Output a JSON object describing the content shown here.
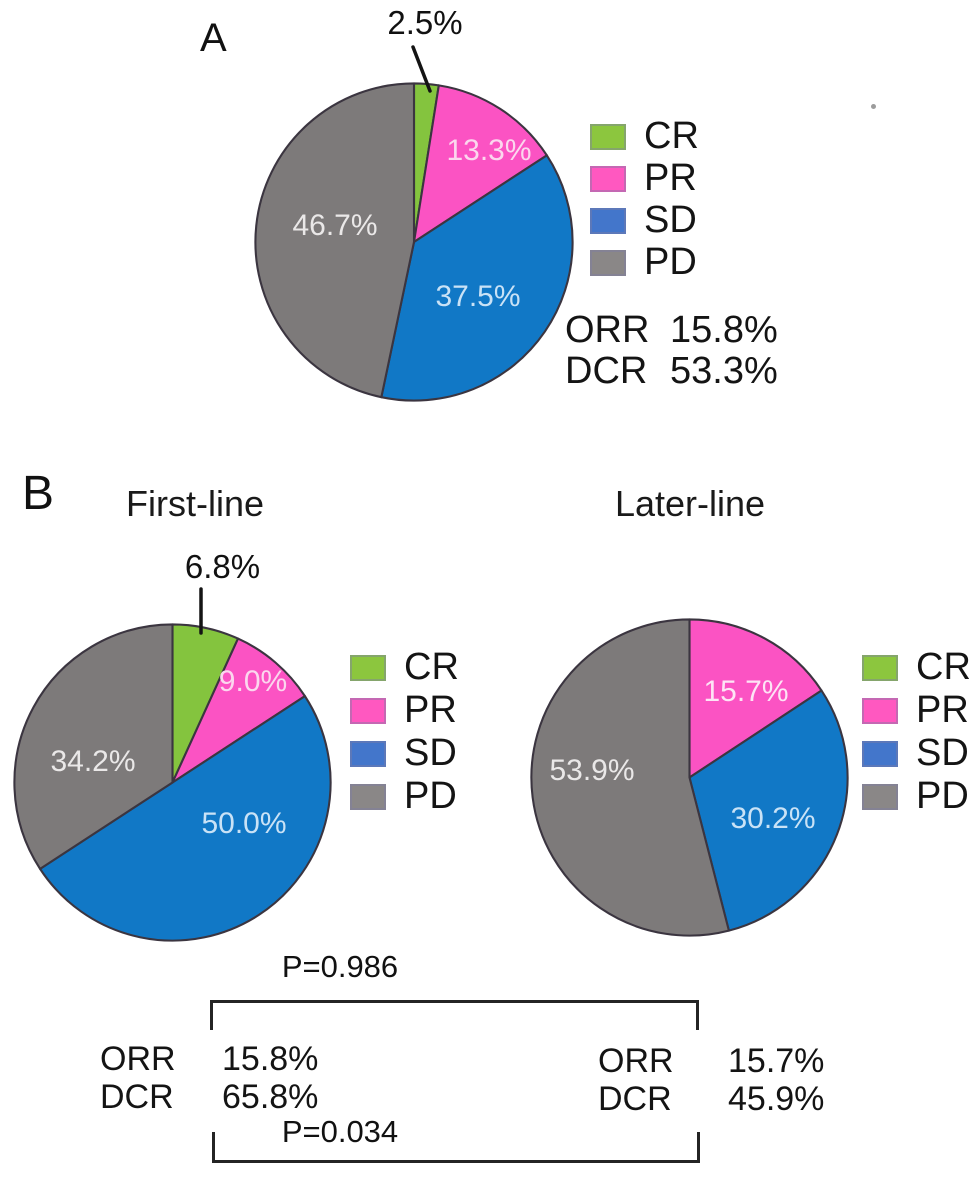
{
  "panels": {
    "A": {
      "label": "A"
    },
    "B": {
      "label": "B"
    }
  },
  "chart_data": [
    {
      "type": "pie",
      "panel": "A",
      "title": "",
      "categories": [
        "CR",
        "PR",
        "SD",
        "PD"
      ],
      "values": [
        2.5,
        13.3,
        37.5,
        46.7
      ],
      "labels": [
        "2.5%",
        "13.3%",
        "37.5%",
        "46.7%"
      ],
      "colors": [
        "#84c43e",
        "#fb53c3",
        "#1178c6",
        "#7d7a7a"
      ],
      "legend_colors": [
        "#8cc63e",
        "#ff58c0",
        "#4376cb",
        "#8a8787"
      ],
      "label_colors": [
        "#111111",
        "#fbd7ee",
        "#c9e2f6",
        "#eae8e8"
      ],
      "legend": [
        "CR",
        "PR",
        "SD",
        "PD"
      ],
      "legend_position": "right",
      "start_angle_deg": 0,
      "direction": "clockwise",
      "stats": [
        {
          "label": "ORR",
          "value": "15.8%"
        },
        {
          "label": "DCR",
          "value": "53.3%"
        }
      ]
    },
    {
      "type": "pie",
      "panel": "B",
      "title": "First-line",
      "categories": [
        "CR",
        "PR",
        "SD",
        "PD"
      ],
      "values": [
        6.8,
        9.0,
        50.0,
        34.2
      ],
      "labels": [
        "6.8%",
        "9.0%",
        "50.0%",
        "34.2%"
      ],
      "colors": [
        "#84c43e",
        "#fb53c3",
        "#1178c6",
        "#7d7a7a"
      ],
      "legend_colors": [
        "#8cc63e",
        "#ff58c0",
        "#4376cb",
        "#8a8787"
      ],
      "label_colors": [
        "#111111",
        "#fbd7ee",
        "#c9e2f6",
        "#eae8e8"
      ],
      "legend": [
        "CR",
        "PR",
        "SD",
        "PD"
      ],
      "legend_position": "right",
      "start_angle_deg": 0,
      "direction": "clockwise",
      "stats": [
        {
          "label": "ORR",
          "value": "15.8%"
        },
        {
          "label": "DCR",
          "value": "65.8%"
        }
      ]
    },
    {
      "type": "pie",
      "panel": "B",
      "title": "Later-line",
      "categories": [
        "CR",
        "PR",
        "SD",
        "PD"
      ],
      "values": [
        0,
        15.7,
        30.2,
        53.9
      ],
      "labels": [
        "",
        "15.7%",
        "30.2%",
        "53.9%"
      ],
      "colors": [
        "#84c43e",
        "#fb53c3",
        "#1178c6",
        "#7d7a7a"
      ],
      "legend_colors": [
        "#8cc63e",
        "#ff58c0",
        "#4376cb",
        "#8a8787"
      ],
      "label_colors": [
        "#111111",
        "#fde4f5",
        "#c9e2f6",
        "#eae8e8"
      ],
      "legend": [
        "CR",
        "PR",
        "SD",
        "PD"
      ],
      "legend_position": "right",
      "start_angle_deg": 0,
      "direction": "clockwise",
      "stats": [
        {
          "label": "ORR",
          "value": "15.7%"
        },
        {
          "label": "DCR",
          "value": "45.9%"
        }
      ]
    }
  ],
  "comparisons": {
    "p_top": "P=0.986",
    "p_bottom": "P=0.034"
  },
  "style_colors": {
    "slice_outline": "#3b3540",
    "leader_line": "#141414",
    "bracket": "#242424"
  }
}
